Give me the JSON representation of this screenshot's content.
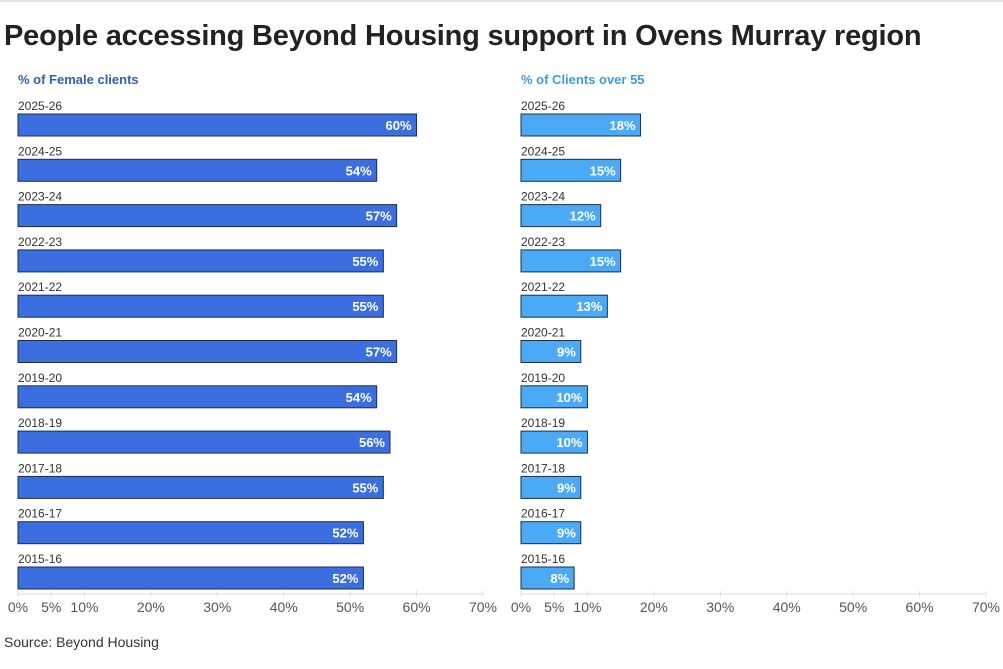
{
  "title": "People accessing Beyond Housing support in Ovens Murray region",
  "source": "Source: Beyond Housing",
  "colors": {
    "female": "#3b6fe0",
    "over55": "#4aaaf5",
    "female_title": "#2e5fb0",
    "over55_title": "#3a9de0",
    "bar_border": "#1f2d4a"
  },
  "chart_data": [
    {
      "type": "bar",
      "orientation": "horizontal",
      "title": "% of Female clients",
      "categories": [
        "2025-26",
        "2024-25",
        "2023-24",
        "2022-23",
        "2021-22",
        "2020-21",
        "2019-20",
        "2018-19",
        "2017-18",
        "2016-17",
        "2015-16"
      ],
      "values": [
        60,
        54,
        57,
        55,
        55,
        57,
        54,
        56,
        55,
        52,
        52
      ],
      "data_labels": [
        "60%",
        "54%",
        "57%",
        "55%",
        "55%",
        "57%",
        "54%",
        "56%",
        "55%",
        "52%",
        "52%"
      ],
      "xlim": [
        0,
        70
      ],
      "ticks": [
        0,
        5,
        10,
        20,
        30,
        40,
        50,
        60,
        70
      ],
      "tick_labels": [
        "0%",
        "5%",
        "10%",
        "20%",
        "30%",
        "40%",
        "50%",
        "60%",
        "70%"
      ],
      "grid": false
    },
    {
      "type": "bar",
      "orientation": "horizontal",
      "title": "% of Clients over 55",
      "categories": [
        "2025-26",
        "2024-25",
        "2023-24",
        "2022-23",
        "2021-22",
        "2020-21",
        "2019-20",
        "2018-19",
        "2017-18",
        "2016-17",
        "2015-16"
      ],
      "values": [
        18,
        15,
        12,
        15,
        13,
        9,
        10,
        10,
        9,
        9,
        8
      ],
      "data_labels": [
        "18%",
        "15%",
        "12%",
        "15%",
        "13%",
        "9%",
        "10%",
        "10%",
        "9%",
        "9%",
        "8%"
      ],
      "xlim": [
        0,
        70
      ],
      "ticks": [
        0,
        5,
        10,
        20,
        30,
        40,
        50,
        60,
        70
      ],
      "tick_labels": [
        "0%",
        "5%",
        "10%",
        "20%",
        "30%",
        "40%",
        "50%",
        "60%",
        "70%"
      ],
      "grid": false
    }
  ]
}
